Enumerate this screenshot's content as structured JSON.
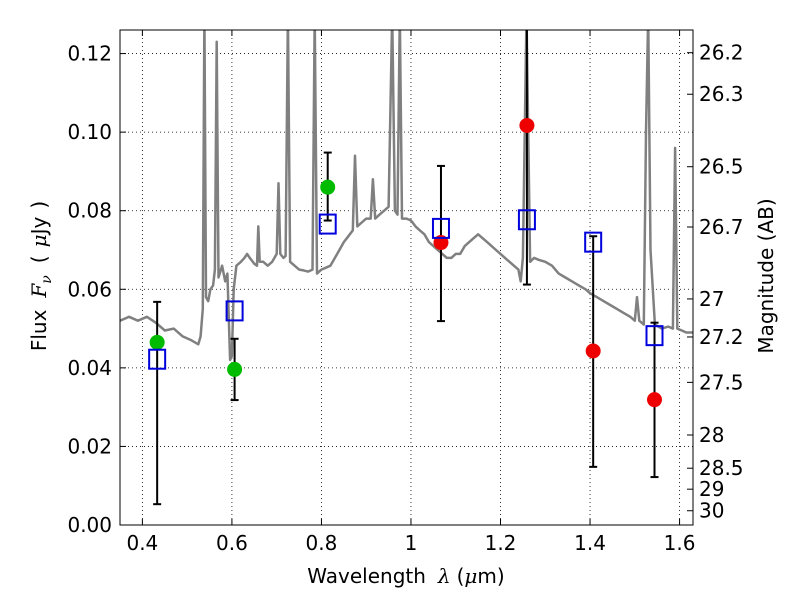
{
  "chart_data": {
    "type": "scatter",
    "xlabel": "Wavelength  λ (μm)",
    "ylabel": "Flux  F_ν  ( μJy )",
    "ylabel_parts": {
      "prefix": "Flux",
      "symbol": "F",
      "subscript": "ν",
      "open": "(",
      "unit_symbol": "μ",
      "unit": "Jy",
      "close": ")"
    },
    "xlabel_parts": {
      "prefix": "Wavelength",
      "symbol": "λ",
      "open": "(",
      "unit_symbol": "μ",
      "unit": "m)"
    },
    "y2label": "Magnitude (AB)",
    "xlim": [
      0.35,
      1.63
    ],
    "ylim": [
      0.0,
      0.126
    ],
    "grid": true,
    "x_ticks": [
      0.4,
      0.6,
      0.8,
      1.0,
      1.2,
      1.4,
      1.6
    ],
    "x_tick_labels": [
      "0.4",
      "0.6",
      "0.8",
      "1",
      "1.2",
      "1.4",
      "1.6"
    ],
    "y_ticks": [
      0.0,
      0.02,
      0.04,
      0.06,
      0.08,
      0.1,
      0.12
    ],
    "y_tick_labels": [
      "0.00",
      "0.02",
      "0.04",
      "0.06",
      "0.08",
      "0.10",
      "0.12"
    ],
    "y2_ticks": [
      "26.2",
      "26.3",
      "26.5",
      "26.7",
      "27",
      "27.2",
      "27.5",
      "28",
      "28.5",
      "29",
      "30"
    ],
    "colors": {
      "model": "#808080",
      "green": "#00bb00",
      "red": "#ee0000",
      "blue": "#0000dd",
      "errorbar": "#000000"
    },
    "series": [
      {
        "marker": "circle-green",
        "points": [
          {
            "x": 0.433,
            "y": 0.0465,
            "yerr_low": 0.0053,
            "yerr_high": 0.0568
          },
          {
            "x": 0.606,
            "y": 0.0396,
            "yerr_low": 0.0318,
            "yerr_high": 0.0474
          },
          {
            "x": 0.814,
            "y": 0.086,
            "yerr_low": 0.0775,
            "yerr_high": 0.0948
          }
        ]
      },
      {
        "marker": "circle-red",
        "points": [
          {
            "x": 1.067,
            "y": 0.0719,
            "yerr_low": 0.0519,
            "yerr_high": 0.0914
          },
          {
            "x": 1.259,
            "y": 0.1017,
            "yerr_low": 0.0612,
            "yerr_high": 0.13
          },
          {
            "x": 1.407,
            "y": 0.0443,
            "yerr_low": 0.0148,
            "yerr_high": 0.0735
          },
          {
            "x": 1.544,
            "y": 0.0319,
            "yerr_low": 0.0122,
            "yerr_high": 0.0515
          }
        ]
      },
      {
        "marker": "square-blue",
        "points": [
          {
            "x": 0.433,
            "y": 0.0422
          },
          {
            "x": 0.606,
            "y": 0.0545
          },
          {
            "x": 0.814,
            "y": 0.0766
          },
          {
            "x": 1.067,
            "y": 0.0755
          },
          {
            "x": 1.259,
            "y": 0.0777
          },
          {
            "x": 1.407,
            "y": 0.072
          },
          {
            "x": 1.544,
            "y": 0.0482
          }
        ]
      }
    ],
    "model_spectrum": [
      [
        0.35,
        0.052
      ],
      [
        0.37,
        0.053
      ],
      [
        0.39,
        0.052
      ],
      [
        0.41,
        0.053
      ],
      [
        0.43,
        0.0515
      ],
      [
        0.45,
        0.0495
      ],
      [
        0.47,
        0.05
      ],
      [
        0.49,
        0.048
      ],
      [
        0.51,
        0.047
      ],
      [
        0.525,
        0.046
      ],
      [
        0.53,
        0.048
      ],
      [
        0.535,
        0.055
      ],
      [
        0.5385,
        0.13
      ],
      [
        0.542,
        0.058
      ],
      [
        0.547,
        0.057
      ],
      [
        0.552,
        0.06
      ],
      [
        0.558,
        0.061
      ],
      [
        0.562,
        0.065
      ],
      [
        0.566,
        0.123
      ],
      [
        0.57,
        0.063
      ],
      [
        0.578,
        0.066
      ],
      [
        0.585,
        0.062
      ],
      [
        0.59,
        0.064
      ],
      [
        0.596,
        0.042
      ],
      [
        0.6,
        0.043
      ],
      [
        0.604,
        0.06
      ],
      [
        0.61,
        0.066
      ],
      [
        0.62,
        0.067
      ],
      [
        0.628,
        0.068
      ],
      [
        0.634,
        0.069
      ],
      [
        0.64,
        0.068
      ],
      [
        0.65,
        0.0665
      ],
      [
        0.656,
        0.066
      ],
      [
        0.659,
        0.076
      ],
      [
        0.662,
        0.067
      ],
      [
        0.67,
        0.067
      ],
      [
        0.68,
        0.066
      ],
      [
        0.69,
        0.067
      ],
      [
        0.7,
        0.069
      ],
      [
        0.704,
        0.087
      ],
      [
        0.708,
        0.069
      ],
      [
        0.715,
        0.068
      ],
      [
        0.72,
        0.0685
      ],
      [
        0.725,
        0.13
      ],
      [
        0.73,
        0.067
      ],
      [
        0.74,
        0.066
      ],
      [
        0.75,
        0.065
      ],
      [
        0.76,
        0.0648
      ],
      [
        0.77,
        0.0645
      ],
      [
        0.78,
        0.065
      ],
      [
        0.785,
        0.13
      ],
      [
        0.79,
        0.064
      ],
      [
        0.8,
        0.065
      ],
      [
        0.81,
        0.0655
      ],
      [
        0.82,
        0.066
      ],
      [
        0.83,
        0.068
      ],
      [
        0.84,
        0.07
      ],
      [
        0.85,
        0.072
      ],
      [
        0.86,
        0.0735
      ],
      [
        0.87,
        0.075
      ],
      [
        0.875,
        0.094
      ],
      [
        0.88,
        0.076
      ],
      [
        0.89,
        0.077
      ],
      [
        0.9,
        0.078
      ],
      [
        0.91,
        0.078
      ],
      [
        0.915,
        0.088
      ],
      [
        0.92,
        0.078
      ],
      [
        0.93,
        0.079
      ],
      [
        0.94,
        0.08
      ],
      [
        0.95,
        0.081
      ],
      [
        0.958,
        0.13
      ],
      [
        0.964,
        0.08
      ],
      [
        0.97,
        0.079
      ],
      [
        0.975,
        0.13
      ],
      [
        0.98,
        0.078
      ],
      [
        0.99,
        0.078
      ],
      [
        1.0,
        0.0775
      ],
      [
        1.01,
        0.076
      ],
      [
        1.02,
        0.075
      ],
      [
        1.03,
        0.074
      ],
      [
        1.04,
        0.072
      ],
      [
        1.05,
        0.071
      ],
      [
        1.06,
        0.07
      ],
      [
        1.07,
        0.069
      ],
      [
        1.08,
        0.068
      ],
      [
        1.09,
        0.068
      ],
      [
        1.1,
        0.069
      ],
      [
        1.11,
        0.069
      ],
      [
        1.12,
        0.071
      ],
      [
        1.13,
        0.072
      ],
      [
        1.14,
        0.073
      ],
      [
        1.15,
        0.074
      ],
      [
        1.16,
        0.073
      ],
      [
        1.17,
        0.072
      ],
      [
        1.18,
        0.071
      ],
      [
        1.19,
        0.07
      ],
      [
        1.2,
        0.069
      ],
      [
        1.21,
        0.068
      ],
      [
        1.22,
        0.067
      ],
      [
        1.23,
        0.066
      ],
      [
        1.24,
        0.065
      ],
      [
        1.245,
        0.062
      ],
      [
        1.25,
        0.068
      ],
      [
        1.258,
        0.13
      ],
      [
        1.266,
        0.067
      ],
      [
        1.275,
        0.068
      ],
      [
        1.285,
        0.0675
      ],
      [
        1.3,
        0.067
      ],
      [
        1.315,
        0.066
      ],
      [
        1.33,
        0.064
      ],
      [
        1.345,
        0.063
      ],
      [
        1.36,
        0.062
      ],
      [
        1.375,
        0.061
      ],
      [
        1.39,
        0.06
      ],
      [
        1.4,
        0.059
      ],
      [
        1.415,
        0.058
      ],
      [
        1.43,
        0.057
      ],
      [
        1.445,
        0.056
      ],
      [
        1.46,
        0.055
      ],
      [
        1.475,
        0.054
      ],
      [
        1.49,
        0.053
      ],
      [
        1.5,
        0.052
      ],
      [
        1.505,
        0.058
      ],
      [
        1.51,
        0.052
      ],
      [
        1.52,
        0.051
      ],
      [
        1.525,
        0.1
      ],
      [
        1.53,
        0.13
      ],
      [
        1.535,
        0.07
      ],
      [
        1.545,
        0.051
      ],
      [
        1.56,
        0.05
      ],
      [
        1.575,
        0.0505
      ],
      [
        1.585,
        0.05
      ],
      [
        1.59,
        0.096
      ],
      [
        1.595,
        0.05
      ],
      [
        1.605,
        0.0495
      ],
      [
        1.615,
        0.049
      ],
      [
        1.63,
        0.049
      ]
    ]
  }
}
